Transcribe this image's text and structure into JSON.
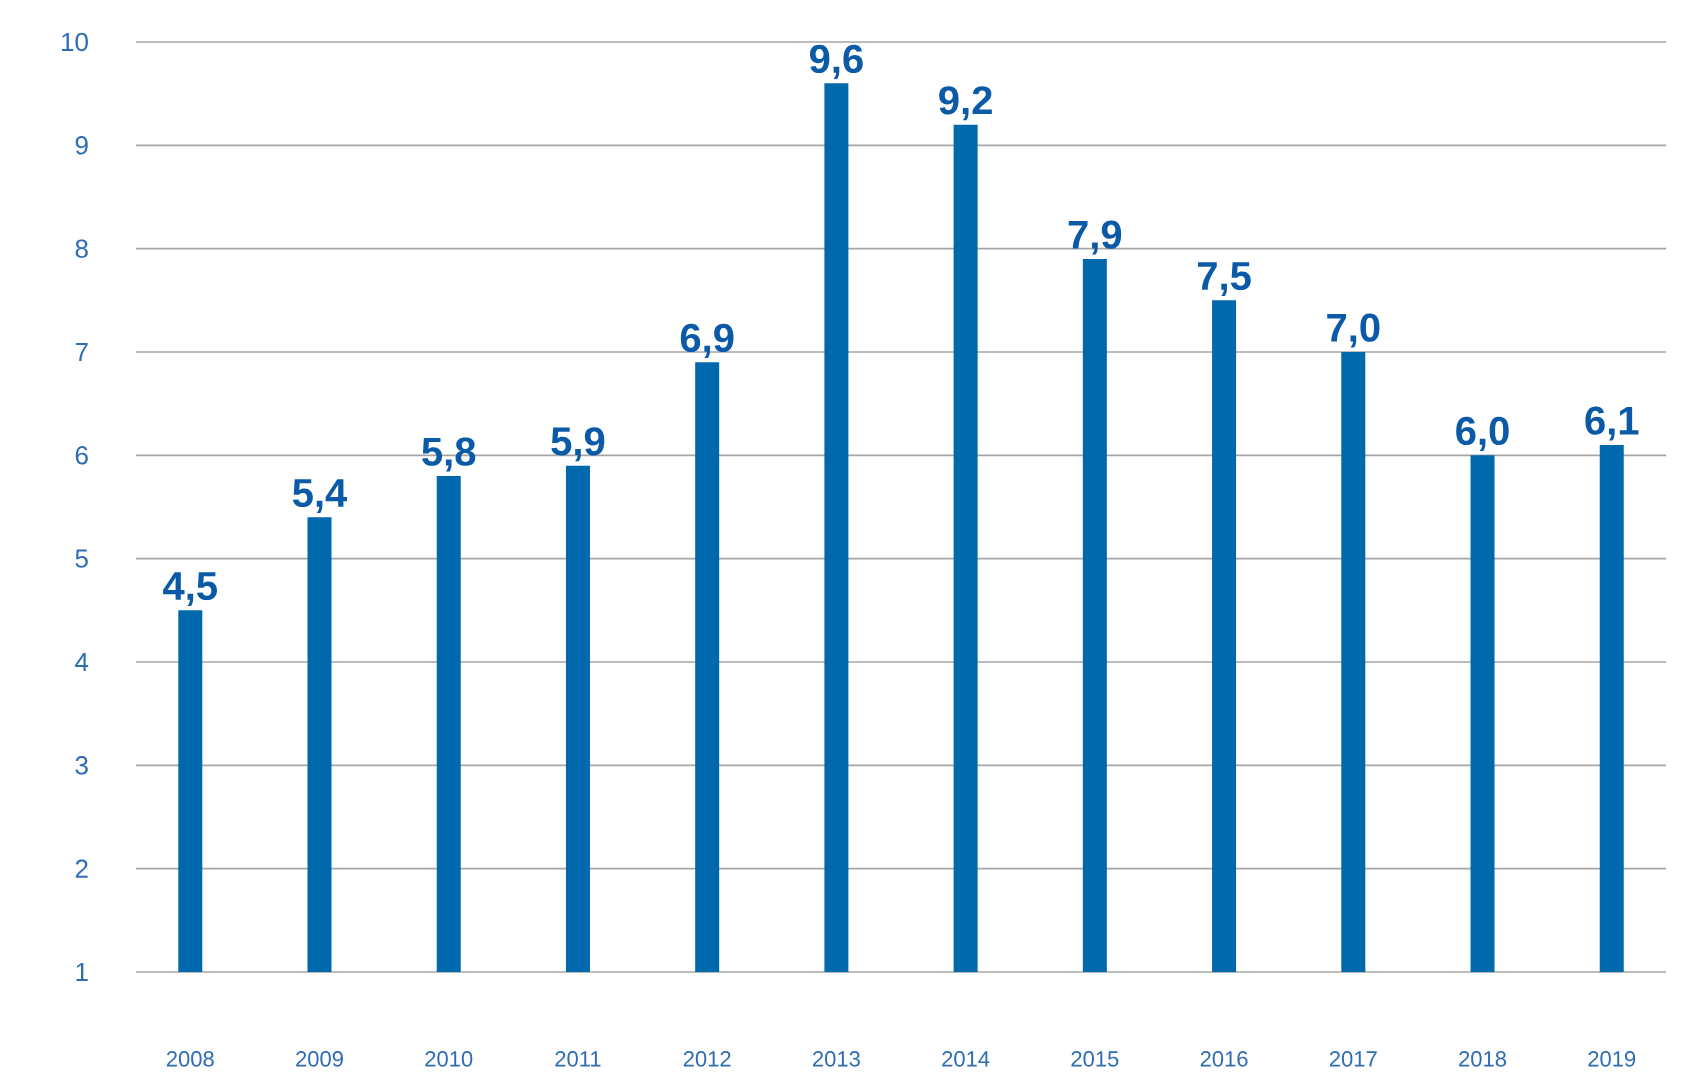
{
  "chart_data": {
    "type": "bar",
    "categories": [
      "2008",
      "2009",
      "2010",
      "2011",
      "2012",
      "2013",
      "2014",
      "2015",
      "2016",
      "2017",
      "2018",
      "2019"
    ],
    "values": [
      4.5,
      5.4,
      5.8,
      5.9,
      6.9,
      9.6,
      9.2,
      7.9,
      7.5,
      7.0,
      6.0,
      6.1
    ],
    "value_labels": [
      "4,5",
      "5,4",
      "5,8",
      "5,9",
      "6,9",
      "9,6",
      "9,2",
      "7,9",
      "7,5",
      "7,0",
      "6,0",
      "6,1"
    ],
    "color": "#0068ad",
    "ylim": [
      1,
      10
    ],
    "yticks": [
      1,
      2,
      3,
      4,
      5,
      6,
      7,
      8,
      9,
      10
    ],
    "grid": "y"
  }
}
